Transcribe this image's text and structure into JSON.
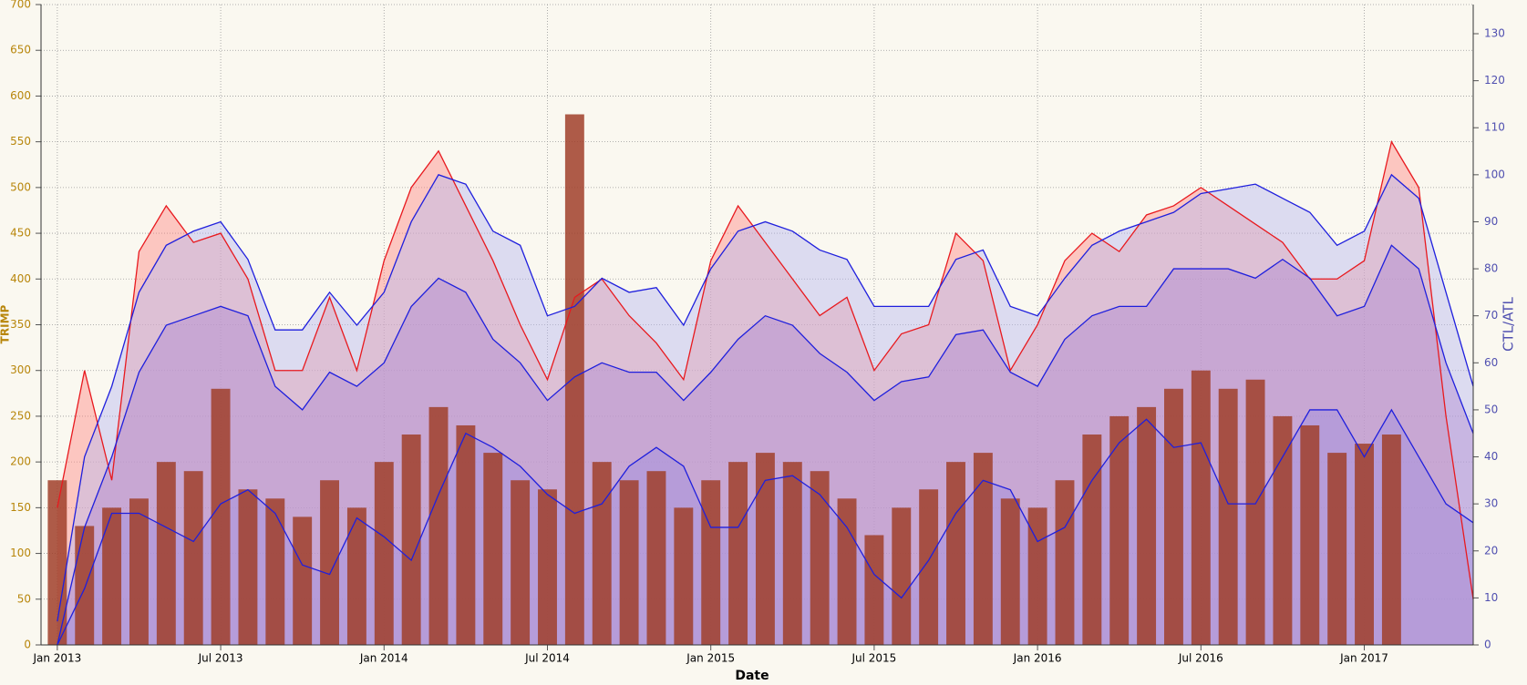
{
  "chart_data": {
    "type": "combo",
    "x_label": "Date",
    "y_label": "TRIMP",
    "y2_label": "CTL/ATL",
    "x": [
      "2013-01",
      "2013-02",
      "2013-03",
      "2013-04",
      "2013-05",
      "2013-06",
      "2013-07",
      "2013-08",
      "2013-09",
      "2013-10",
      "2013-11",
      "2013-12",
      "2014-01",
      "2014-02",
      "2014-03",
      "2014-04",
      "2014-05",
      "2014-06",
      "2014-07",
      "2014-08",
      "2014-09",
      "2014-10",
      "2014-11",
      "2014-12",
      "2015-01",
      "2015-02",
      "2015-03",
      "2015-04",
      "2015-05",
      "2015-06",
      "2015-07",
      "2015-08",
      "2015-09",
      "2015-10",
      "2015-11",
      "2015-12",
      "2016-01",
      "2016-02",
      "2016-03",
      "2016-04",
      "2016-05",
      "2016-06",
      "2016-07",
      "2016-08",
      "2016-09",
      "2016-10",
      "2016-11",
      "2016-12",
      "2017-01",
      "2017-02",
      "2017-03",
      "2017-04",
      "2017-05"
    ],
    "xlim": [
      "2012-12",
      "2017-05"
    ],
    "xticks": [
      {
        "value": "2013-01",
        "label": "Jan 2013"
      },
      {
        "value": "2013-07",
        "label": "Jul 2013"
      },
      {
        "value": "2014-01",
        "label": "Jan 2014"
      },
      {
        "value": "2014-07",
        "label": "Jul 2014"
      },
      {
        "value": "2015-01",
        "label": "Jan 2015"
      },
      {
        "value": "2015-07",
        "label": "Jul 2015"
      },
      {
        "value": "2016-01",
        "label": "Jan 2016"
      },
      {
        "value": "2016-07",
        "label": "Jul 2016"
      },
      {
        "value": "2017-01",
        "label": "Jan 2017"
      }
    ],
    "ylim": [
      0,
      700
    ],
    "yticks": [
      0,
      50,
      100,
      150,
      200,
      250,
      300,
      350,
      400,
      450,
      500,
      550,
      600,
      650,
      700
    ],
    "y2lim": [
      0,
      136.2
    ],
    "y2ticks": [
      0,
      10,
      20,
      30,
      40,
      50,
      60,
      70,
      80,
      90,
      100,
      110,
      120,
      130
    ],
    "grid": true,
    "series": [
      {
        "type": "area",
        "color": "#e8191e",
        "fill": "#ff8a84",
        "values": [
          150,
          300,
          180,
          430,
          480,
          440,
          450,
          400,
          300,
          300,
          380,
          300,
          420,
          500,
          540,
          480,
          420,
          350,
          290,
          380,
          400,
          360,
          330,
          290,
          420,
          480,
          440,
          400,
          360,
          380,
          300,
          340,
          350,
          450,
          420,
          300,
          350,
          420,
          450,
          430,
          470,
          480,
          500,
          480,
          460,
          440,
          400,
          400,
          420,
          550,
          500,
          250,
          50
        ]
      },
      {
        "type": "area",
        "axis": "y2",
        "color": "#1f1fdd",
        "fill": "#b8b8f0",
        "values": [
          5,
          40,
          55,
          75,
          85,
          88,
          90,
          82,
          67,
          67,
          75,
          68,
          75,
          90,
          100,
          98,
          88,
          85,
          70,
          72,
          78,
          75,
          76,
          68,
          80,
          88,
          90,
          88,
          84,
          82,
          72,
          72,
          72,
          82,
          84,
          72,
          70,
          78,
          85,
          88,
          90,
          92,
          96,
          97,
          98,
          95,
          92,
          85,
          88,
          100,
          95,
          75,
          55
        ]
      },
      {
        "type": "area",
        "axis": "y2",
        "color": "#1f1fdd",
        "fill": "#b08ad0",
        "values": [
          0,
          25,
          40,
          58,
          68,
          70,
          72,
          70,
          55,
          50,
          58,
          55,
          60,
          72,
          78,
          75,
          65,
          60,
          52,
          57,
          60,
          58,
          58,
          52,
          58,
          65,
          70,
          68,
          62,
          58,
          52,
          56,
          57,
          66,
          67,
          58,
          55,
          65,
          70,
          72,
          72,
          80,
          80,
          80,
          78,
          82,
          78,
          70,
          72,
          85,
          80,
          60,
          45
        ]
      },
      {
        "type": "area",
        "axis": "y2",
        "color": "#1f1fdd",
        "fill": "#a090e0",
        "values": [
          0,
          12,
          28,
          28,
          25,
          22,
          30,
          33,
          28,
          17,
          15,
          27,
          23,
          18,
          32,
          45,
          42,
          38,
          32,
          28,
          30,
          38,
          42,
          38,
          25,
          25,
          35,
          36,
          32,
          25,
          15,
          10,
          18,
          28,
          35,
          33,
          22,
          25,
          35,
          43,
          48,
          42,
          43,
          30,
          30,
          40,
          50,
          50,
          40,
          50,
          40,
          30,
          26
        ]
      },
      {
        "type": "bar",
        "color": "#a0402a",
        "values": [
          180,
          130,
          150,
          160,
          200,
          190,
          280,
          170,
          160,
          140,
          180,
          150,
          200,
          230,
          260,
          240,
          210,
          180,
          170,
          580,
          200,
          180,
          190,
          150,
          180,
          200,
          210,
          200,
          190,
          160,
          120,
          150,
          170,
          200,
          210,
          160,
          150,
          180,
          230,
          250,
          260,
          280,
          300,
          280,
          290,
          250,
          240,
          210,
          220,
          230,
          null,
          null,
          null
        ]
      }
    ]
  }
}
